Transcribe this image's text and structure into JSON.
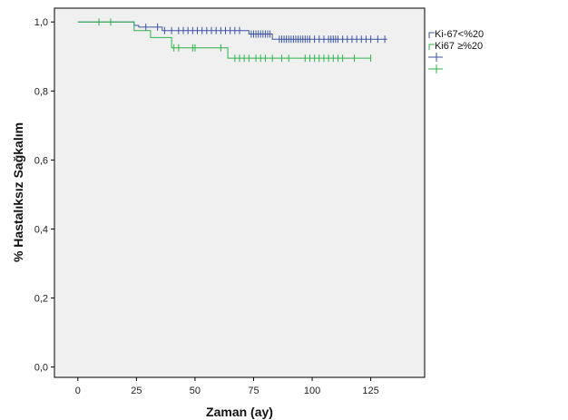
{
  "chart_data": {
    "type": "line",
    "title": "",
    "xlabel": "Zaman (ay)",
    "ylabel": "% Hastalıksız Sağkalım",
    "xlim": [
      -10,
      148
    ],
    "ylim": [
      -0.03,
      1.04
    ],
    "xticks": [
      0,
      25,
      50,
      75,
      100,
      125
    ],
    "xtick_labels": [
      "0",
      "25",
      "50",
      "75",
      "100",
      "125"
    ],
    "yticks": [
      0.0,
      0.2,
      0.4,
      0.6,
      0.8,
      1.0
    ],
    "ytick_labels": [
      "0,0",
      "0,2",
      "0,4",
      "0,6",
      "0,8",
      "1,0"
    ],
    "grid": false,
    "legend_position": "right",
    "plot_background": "#f0f0f0",
    "series": [
      {
        "name": "Ki-67<%20",
        "color": "#3c53a4",
        "steps": [
          [
            0,
            1.0
          ],
          [
            24,
            0.99
          ],
          [
            26,
            0.985
          ],
          [
            36,
            0.975
          ],
          [
            73,
            0.965
          ],
          [
            83,
            0.95
          ],
          [
            132,
            0.95
          ]
        ],
        "censored": [
          [
            29,
            0.985
          ],
          [
            34,
            0.985
          ],
          [
            37,
            0.975
          ],
          [
            40,
            0.975
          ],
          [
            43,
            0.975
          ],
          [
            45,
            0.975
          ],
          [
            47,
            0.975
          ],
          [
            49,
            0.975
          ],
          [
            51,
            0.975
          ],
          [
            53,
            0.975
          ],
          [
            55,
            0.975
          ],
          [
            57,
            0.975
          ],
          [
            59,
            0.975
          ],
          [
            61,
            0.975
          ],
          [
            63,
            0.975
          ],
          [
            65,
            0.975
          ],
          [
            67,
            0.975
          ],
          [
            69,
            0.975
          ],
          [
            74,
            0.965
          ],
          [
            75,
            0.965
          ],
          [
            76,
            0.965
          ],
          [
            77,
            0.965
          ],
          [
            78,
            0.965
          ],
          [
            79,
            0.965
          ],
          [
            80,
            0.965
          ],
          [
            81,
            0.965
          ],
          [
            82,
            0.965
          ],
          [
            86,
            0.95
          ],
          [
            87,
            0.95
          ],
          [
            88,
            0.95
          ],
          [
            89,
            0.95
          ],
          [
            90,
            0.95
          ],
          [
            91,
            0.95
          ],
          [
            92,
            0.95
          ],
          [
            93,
            0.95
          ],
          [
            94,
            0.95
          ],
          [
            95,
            0.95
          ],
          [
            96,
            0.95
          ],
          [
            97,
            0.95
          ],
          [
            98,
            0.95
          ],
          [
            99,
            0.95
          ],
          [
            101,
            0.95
          ],
          [
            103,
            0.95
          ],
          [
            105,
            0.95
          ],
          [
            107,
            0.95
          ],
          [
            108,
            0.95
          ],
          [
            109,
            0.95
          ],
          [
            110,
            0.95
          ],
          [
            111,
            0.95
          ],
          [
            113,
            0.95
          ],
          [
            115,
            0.95
          ],
          [
            117,
            0.95
          ],
          [
            119,
            0.95
          ],
          [
            121,
            0.95
          ],
          [
            123,
            0.95
          ],
          [
            125,
            0.95
          ],
          [
            128,
            0.95
          ],
          [
            131,
            0.95
          ]
        ]
      },
      {
        "name": "Ki67 ≥%20",
        "color": "#2db34a",
        "steps": [
          [
            0,
            1.0
          ],
          [
            24,
            0.975
          ],
          [
            31,
            0.955
          ],
          [
            40,
            0.925
          ],
          [
            64,
            0.895
          ],
          [
            125,
            0.895
          ]
        ],
        "censored": [
          [
            9,
            1.0
          ],
          [
            14,
            1.0
          ],
          [
            41,
            0.925
          ],
          [
            43,
            0.925
          ],
          [
            49,
            0.925
          ],
          [
            50,
            0.925
          ],
          [
            61,
            0.925
          ],
          [
            67,
            0.895
          ],
          [
            69,
            0.895
          ],
          [
            71,
            0.895
          ],
          [
            73,
            0.895
          ],
          [
            76,
            0.895
          ],
          [
            78,
            0.895
          ],
          [
            80,
            0.895
          ],
          [
            83,
            0.895
          ],
          [
            87,
            0.895
          ],
          [
            90,
            0.895
          ],
          [
            97,
            0.895
          ],
          [
            99,
            0.895
          ],
          [
            101,
            0.895
          ],
          [
            103,
            0.895
          ],
          [
            105,
            0.895
          ],
          [
            107,
            0.895
          ],
          [
            109,
            0.895
          ],
          [
            111,
            0.895
          ],
          [
            113,
            0.895
          ],
          [
            118,
            0.895
          ],
          [
            125,
            0.895
          ]
        ]
      }
    ]
  }
}
